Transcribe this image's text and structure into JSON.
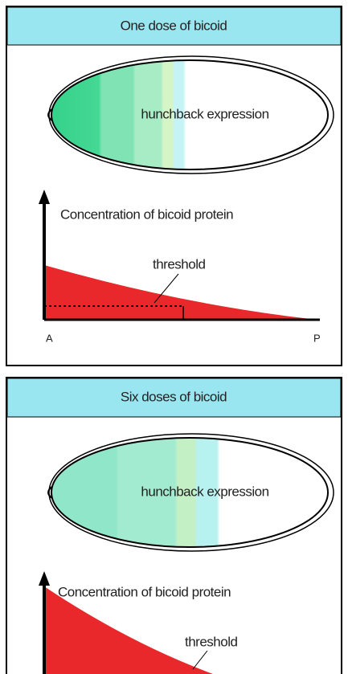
{
  "panels": [
    {
      "title": "One dose of bicoid",
      "embryo_label": "hunchback expression",
      "axis_label": "Concentration of bicoid protein",
      "threshold_label": "threshold",
      "a_label": "A",
      "p_label": "P"
    },
    {
      "title": "Six doses of bicoid",
      "embryo_label": "hunchback expression",
      "axis_label": "Concentration of bicoid protein",
      "threshold_label": "threshold"
    }
  ]
}
